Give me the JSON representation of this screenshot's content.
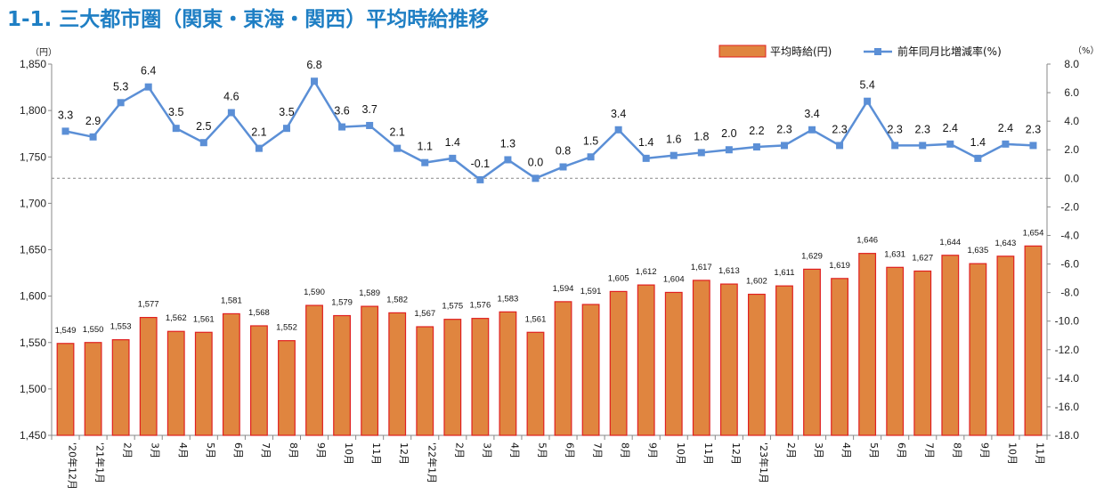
{
  "page": {
    "title": "1-1. 三大都市圏（関東・東海・関西）平均時給推移"
  },
  "chart_data": {
    "type": "bar",
    "title": "1-1. 三大都市圏（関東・東海・関西）平均時給推移",
    "left_unit": "（円）",
    "right_unit": "（%）",
    "legend_position": "top-right",
    "categories": [
      "'20年12月",
      "'21年1月",
      "2月",
      "3月",
      "4月",
      "5月",
      "6月",
      "7月",
      "8月",
      "9月",
      "10月",
      "11月",
      "12月",
      "'22年1月",
      "2月",
      "3月",
      "4月",
      "5月",
      "6月",
      "7月",
      "8月",
      "9月",
      "10月",
      "11月",
      "12月",
      "'23年1月",
      "2月",
      "3月",
      "4月",
      "5月",
      "6月",
      "7月",
      "8月",
      "9月",
      "10月",
      "11月"
    ],
    "series": [
      {
        "name": "平均時給(円)",
        "type": "bar",
        "axis": "left",
        "color": "#e0853f",
        "border_color": "#e02020",
        "values": [
          1549,
          1550,
          1553,
          1577,
          1562,
          1561,
          1581,
          1568,
          1552,
          1590,
          1579,
          1589,
          1582,
          1567,
          1575,
          1576,
          1583,
          1561,
          1594,
          1591,
          1605,
          1612,
          1604,
          1617,
          1613,
          1602,
          1611,
          1629,
          1619,
          1646,
          1631,
          1627,
          1644,
          1635,
          1643,
          1654
        ],
        "labels": [
          "1,549",
          "1,550",
          "1,553",
          "1,577",
          "1,562",
          "1,561",
          "1,581",
          "1,568",
          "1,552",
          "1,590",
          "1,579",
          "1,589",
          "1,582",
          "1,567",
          "1,575",
          "1,576",
          "1,583",
          "1,561",
          "1,594",
          "1,591",
          "1,605",
          "1,612",
          "1,604",
          "1,617",
          "1,613",
          "1,602",
          "1,611",
          "1,629",
          "1,619",
          "1,646",
          "1,631",
          "1,627",
          "1,644",
          "1,635",
          "1,643",
          "1,654"
        ]
      },
      {
        "name": "前年同月比増減率(%)",
        "type": "line",
        "axis": "right",
        "color": "#5b8fd6",
        "values": [
          3.3,
          2.9,
          5.3,
          6.4,
          3.5,
          2.5,
          4.6,
          2.1,
          3.5,
          6.8,
          3.6,
          3.7,
          2.1,
          1.1,
          1.4,
          -0.1,
          1.3,
          0.0,
          0.8,
          1.5,
          3.4,
          1.4,
          1.6,
          1.8,
          2.0,
          2.2,
          2.3,
          3.4,
          2.3,
          5.4,
          2.3,
          2.3,
          2.4,
          1.4,
          2.4,
          2.3
        ],
        "labels": [
          "3.3",
          "2.9",
          "5.3",
          "6.4",
          "3.5",
          "2.5",
          "4.6",
          "2.1",
          "3.5",
          "6.8",
          "3.6",
          "3.7",
          "2.1",
          "1.1",
          "1.4",
          "-0.1",
          "1.3",
          "0.0",
          "0.8",
          "1.5",
          "3.4",
          "1.4",
          "1.6",
          "1.8",
          "2.0",
          "2.2",
          "2.3",
          "3.4",
          "2.3",
          "5.4",
          "2.3",
          "2.3",
          "2.4",
          "1.4",
          "2.4",
          "2.3"
        ]
      }
    ],
    "y_left": {
      "min": 1450,
      "max": 1850,
      "step": 50,
      "ticks": [
        "1,450",
        "1,500",
        "1,550",
        "1,600",
        "1,650",
        "1,700",
        "1,750",
        "1,800",
        "1,850"
      ]
    },
    "y_right": {
      "min": -18,
      "max": 8,
      "step": 2,
      "ticks": [
        "-18.0",
        "-16.0",
        "-14.0",
        "-12.0",
        "-10.0",
        "-8.0",
        "-6.0",
        "-4.0",
        "-2.0",
        "0.0",
        "2.0",
        "4.0",
        "6.0",
        "8.0"
      ]
    },
    "zero_reference_line": true,
    "grid": false
  }
}
